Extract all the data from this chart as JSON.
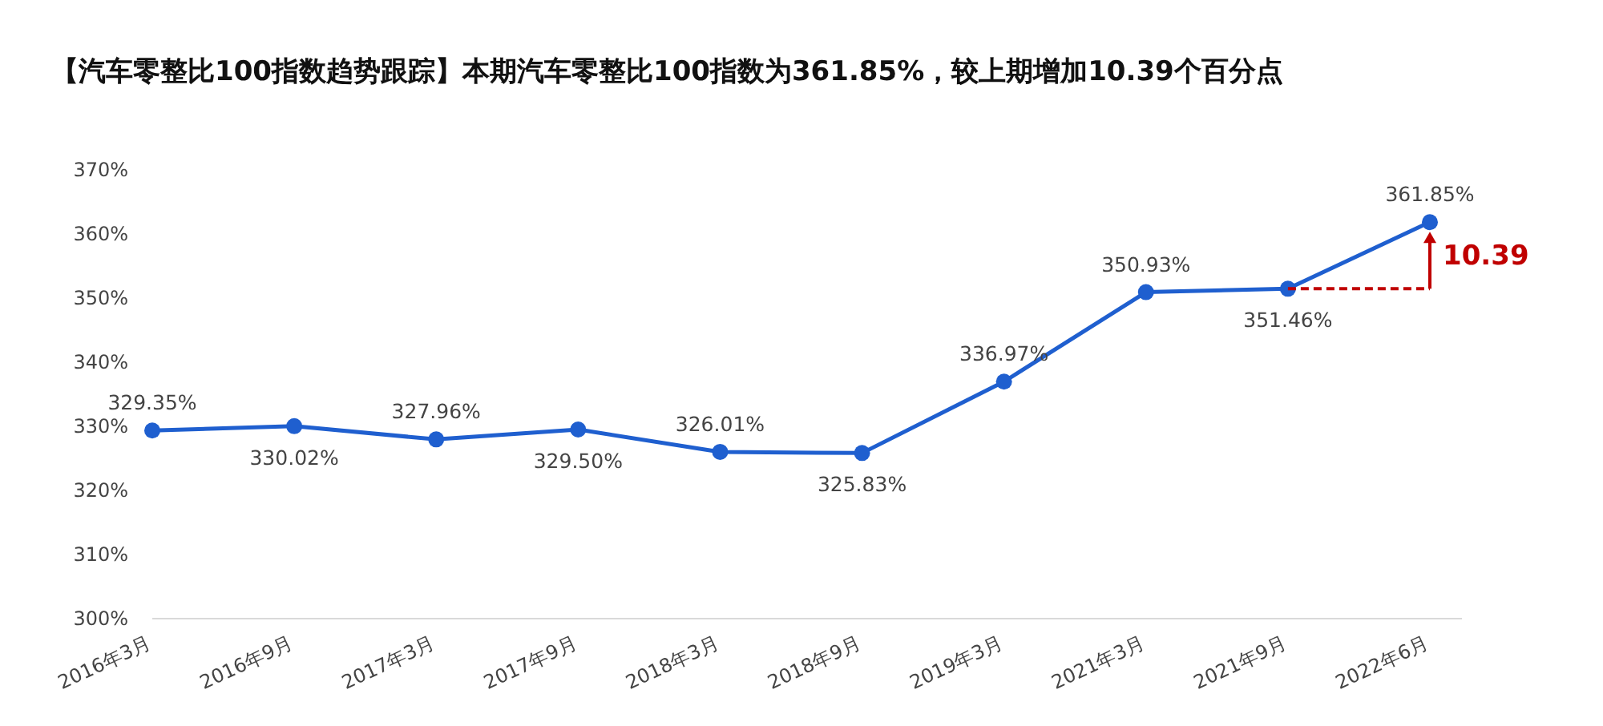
{
  "chart_data": {
    "type": "line",
    "title": "【汽车零整比100指数趋势跟踪】本期汽车零整比100指数为361.85%，较上期增加10.39个百分点",
    "categories": [
      "2016年3月",
      "2016年9月",
      "2017年3月",
      "2017年9月",
      "2018年3月",
      "2018年9月",
      "2019年3月",
      "2021年3月",
      "2021年9月",
      "2022年6月"
    ],
    "series": [
      {
        "color": "#1f5fcf",
        "values": [
          329.35,
          330.02,
          327.96,
          329.5,
          326.01,
          325.83,
          336.97,
          350.93,
          351.46,
          361.85
        ],
        "value_labels": [
          "329.35%",
          "330.02%",
          "327.96%",
          "329.50%",
          "326.01%",
          "325.83%",
          "336.97%",
          "350.93%",
          "351.46%",
          "361.85%"
        ]
      }
    ],
    "ylim": [
      300,
      370
    ],
    "yticks": [
      {
        "value": 300,
        "label": "300%"
      },
      {
        "value": 310,
        "label": "310%"
      },
      {
        "value": 320,
        "label": "320%"
      },
      {
        "value": 330,
        "label": "330%"
      },
      {
        "value": 340,
        "label": "340%"
      },
      {
        "value": 350,
        "label": "350%"
      },
      {
        "value": 360,
        "label": "360%"
      },
      {
        "value": 370,
        "label": "370%"
      }
    ],
    "marker": "circle",
    "line_style": "solid",
    "grid": false,
    "annotations": [
      {
        "text": "10.39",
        "x": "2022年6月",
        "y": 356.7
      }
    ]
  }
}
